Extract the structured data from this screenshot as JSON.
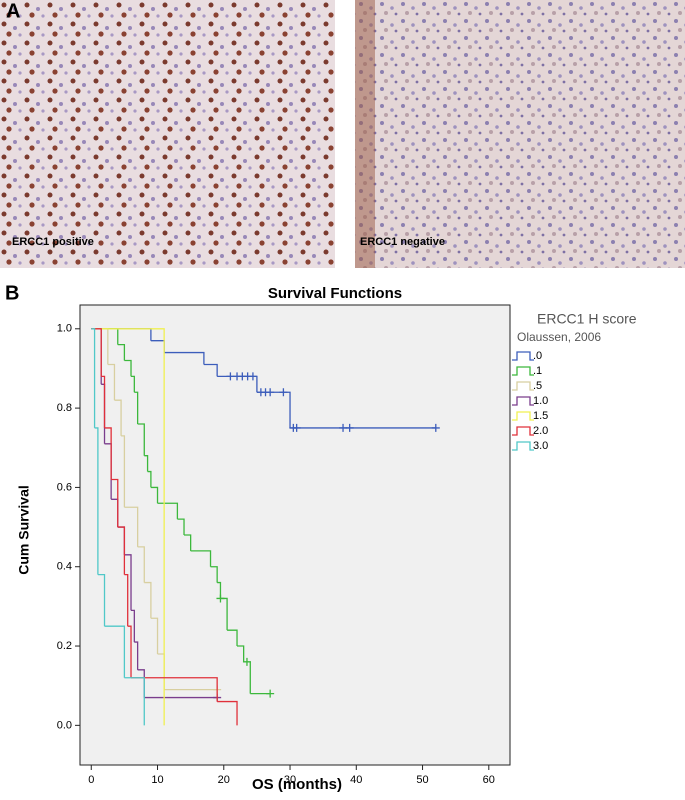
{
  "figure": {
    "panel_a_label": "A",
    "captions": [
      "ERCC1 positive",
      "ERCC1 negative"
    ],
    "panel_b_label": "B"
  },
  "chart_data": {
    "type": "step",
    "title": "Survival Functions",
    "x_label": "OS (months)",
    "y_label": "Cum Survival",
    "legend_title": "ERCC1  H score",
    "legend_subtitle": "Olaussen, 2006",
    "xlim": [
      -1.7,
      63.2
    ],
    "xticks": [
      0,
      10,
      20,
      30,
      40,
      50,
      60
    ],
    "ylim": [
      -0.1,
      1.06
    ],
    "yticks": [
      {
        "value": 0,
        "label": "0.0"
      },
      0.2,
      0.4,
      0.6,
      0.8,
      {
        "value": 1,
        "label": "1.0"
      }
    ],
    "series": [
      {
        "name": ".0",
        "color": "#3c5dbb",
        "x": [
          0,
          9,
          11,
          17,
          19,
          25,
          30,
          52
        ],
        "values": [
          1,
          0.97,
          0.94,
          0.91,
          0.88,
          0.84,
          0.75,
          0.75
        ],
        "censored": {
          "x": [
            21,
            22,
            22.8,
            23.6,
            24.4,
            25.6,
            26.3,
            27,
            29,
            30.5,
            31,
            38,
            39,
            52
          ],
          "values": [
            0.88,
            0.88,
            0.88,
            0.88,
            0.88,
            0.84,
            0.84,
            0.84,
            0.84,
            0.75,
            0.75,
            0.75,
            0.75,
            0.75
          ]
        }
      },
      {
        "name": ".1",
        "color": "#3cb83c",
        "x": [
          0,
          4,
          5,
          6,
          6.5,
          7,
          8,
          8.5,
          9,
          10,
          13,
          14,
          15,
          18,
          19,
          19.5,
          20.5,
          22,
          23,
          24,
          27
        ],
        "values": [
          1,
          0.96,
          0.92,
          0.88,
          0.84,
          0.76,
          0.68,
          0.64,
          0.6,
          0.56,
          0.52,
          0.48,
          0.44,
          0.4,
          0.36,
          0.32,
          0.24,
          0.2,
          0.16,
          0.08,
          0.08
        ],
        "censored": {
          "x": [
            19.5,
            23.5,
            27
          ],
          "values": [
            0.32,
            0.16,
            0.08
          ]
        }
      },
      {
        "name": ".5",
        "color": "#d8cfa0",
        "x": [
          0,
          2.5,
          3.5,
          4.5,
          5,
          7,
          8,
          9,
          10,
          11,
          19
        ],
        "values": [
          1,
          0.91,
          0.82,
          0.73,
          0.55,
          0.45,
          0.36,
          0.27,
          0.18,
          0.09,
          0.09
        ],
        "censored": {
          "x": [
            19
          ],
          "values": [
            0.09
          ]
        }
      },
      {
        "name": "1.0",
        "color": "#7a3d8c",
        "x": [
          0,
          1.5,
          2,
          3,
          4,
          5,
          6,
          6.5,
          7,
          8,
          19
        ],
        "values": [
          1,
          0.86,
          0.71,
          0.57,
          0.5,
          0.43,
          0.29,
          0.21,
          0.14,
          0.07,
          0.07
        ],
        "censored": {
          "x": [
            19
          ],
          "values": [
            0.07
          ]
        }
      },
      {
        "name": "1.5",
        "color": "#f0f050",
        "x": [
          0,
          11
        ],
        "values": [
          1,
          0
        ],
        "censored": {
          "x": [],
          "values": []
        }
      },
      {
        "name": "2.0",
        "color": "#e0303a",
        "x": [
          0,
          1.5,
          2,
          3,
          4,
          5,
          5.5,
          6,
          19,
          22
        ],
        "values": [
          1,
          0.88,
          0.75,
          0.62,
          0.5,
          0.38,
          0.25,
          0.12,
          0.06,
          0
        ],
        "censored": {
          "x": [],
          "values": []
        }
      },
      {
        "name": "3.0",
        "color": "#50c8c8",
        "x": [
          0,
          0.5,
          1,
          2,
          5,
          8
        ],
        "values": [
          1,
          0.75,
          0.38,
          0.25,
          0.12,
          0
        ],
        "censored": {
          "x": [],
          "values": []
        }
      }
    ]
  }
}
